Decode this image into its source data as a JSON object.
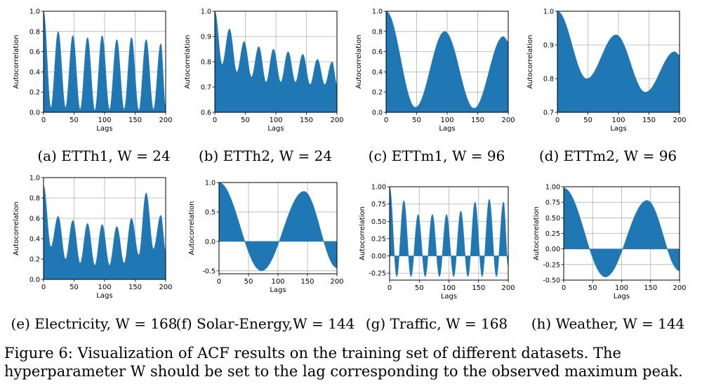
{
  "figure": {
    "caption": "Figure 6: Visualization of ACF results on the training set of different datasets. The hyperparameter W should be set to the lag corresponding to the observed maximum peak."
  },
  "chart_data": [
    {
      "type": "area",
      "dataset": "ETTh1",
      "subcaption": "(a) ETTh1, W = 24",
      "xlabel": "Lags",
      "ylabel": "Autocorrelation",
      "xlim": [
        0,
        200
      ],
      "ylim": [
        0.0,
        1.0
      ],
      "xticks": [
        0,
        50,
        100,
        150,
        200
      ],
      "yticks": [
        "0.0",
        "0.2",
        "0.4",
        "0.6",
        "0.8",
        "1.0"
      ],
      "grid": true,
      "period": 24,
      "peaks": [
        [
          0,
          1.0
        ],
        [
          24,
          0.8
        ],
        [
          48,
          0.76
        ],
        [
          72,
          0.74
        ],
        [
          96,
          0.76
        ],
        [
          120,
          0.72
        ],
        [
          144,
          0.74
        ],
        [
          168,
          0.72
        ],
        [
          192,
          0.68
        ]
      ],
      "troughs": [
        [
          12,
          0.05
        ],
        [
          36,
          0.05
        ],
        [
          60,
          0.03
        ],
        [
          84,
          0.02
        ],
        [
          108,
          0.03
        ],
        [
          132,
          0.03
        ],
        [
          156,
          0.02
        ],
        [
          180,
          0.03
        ],
        [
          200,
          0.05
        ]
      ]
    },
    {
      "type": "area",
      "dataset": "ETTh2",
      "subcaption": "(b) ETTh2, W = 24",
      "xlabel": "Lags",
      "ylabel": "Autocorrelation",
      "xlim": [
        0,
        200
      ],
      "ylim": [
        0.6,
        1.0
      ],
      "xticks": [
        0,
        50,
        100,
        150,
        200
      ],
      "yticks": [
        "0.6",
        "0.7",
        "0.8",
        "0.9",
        "1.0"
      ],
      "grid": true,
      "period": 24,
      "peaks": [
        [
          0,
          1.0
        ],
        [
          24,
          0.93
        ],
        [
          48,
          0.88
        ],
        [
          72,
          0.86
        ],
        [
          96,
          0.85
        ],
        [
          120,
          0.84
        ],
        [
          144,
          0.83
        ],
        [
          168,
          0.81
        ],
        [
          192,
          0.8
        ]
      ],
      "troughs": [
        [
          12,
          0.79
        ],
        [
          36,
          0.76
        ],
        [
          60,
          0.74
        ],
        [
          84,
          0.72
        ],
        [
          108,
          0.72
        ],
        [
          132,
          0.72
        ],
        [
          156,
          0.71
        ],
        [
          180,
          0.71
        ],
        [
          200,
          0.71
        ]
      ]
    },
    {
      "type": "area",
      "dataset": "ETTm1",
      "subcaption": "(c) ETTm1, W = 96",
      "xlabel": "Lags",
      "ylabel": "Autocorrelation",
      "xlim": [
        0,
        200
      ],
      "ylim": [
        0.0,
        1.0
      ],
      "xticks": [
        0,
        50,
        100,
        150,
        200
      ],
      "yticks": [
        "0.0",
        "0.2",
        "0.4",
        "0.6",
        "0.8",
        "1.0"
      ],
      "grid": true,
      "period": 96,
      "peaks": [
        [
          0,
          1.0
        ],
        [
          96,
          0.8
        ],
        [
          192,
          0.75
        ]
      ],
      "troughs": [
        [
          48,
          0.05
        ],
        [
          144,
          0.04
        ],
        [
          200,
          0.7
        ]
      ]
    },
    {
      "type": "area",
      "dataset": "ETTm2",
      "subcaption": "(d) ETTm2, W = 96",
      "xlabel": "Lags",
      "ylabel": "Autocorrelation",
      "xlim": [
        0,
        200
      ],
      "ylim": [
        0.7,
        1.0
      ],
      "xticks": [
        0,
        50,
        100,
        150,
        200
      ],
      "yticks": [
        "0.7",
        "0.8",
        "0.9",
        "1.0"
      ],
      "grid": true,
      "period": 96,
      "peaks": [
        [
          0,
          1.0
        ],
        [
          96,
          0.93
        ],
        [
          192,
          0.88
        ]
      ],
      "troughs": [
        [
          48,
          0.8
        ],
        [
          144,
          0.76
        ],
        [
          200,
          0.87
        ]
      ]
    },
    {
      "type": "area",
      "dataset": "Electricity",
      "subcaption": "(e) Electricity, W = 168",
      "xlabel": "Lags",
      "ylabel": "Autocorrelation",
      "xlim": [
        0,
        200
      ],
      "ylim": [
        0.0,
        1.0
      ],
      "xticks": [
        0,
        50,
        100,
        150,
        200
      ],
      "yticks": [
        "0.0",
        "0.2",
        "0.4",
        "0.6",
        "0.8",
        "1.0"
      ],
      "grid": true,
      "period": 24,
      "peaks": [
        [
          0,
          0.92
        ],
        [
          24,
          0.62
        ],
        [
          48,
          0.58
        ],
        [
          72,
          0.55
        ],
        [
          96,
          0.54
        ],
        [
          120,
          0.52
        ],
        [
          144,
          0.6
        ],
        [
          168,
          0.85
        ],
        [
          192,
          0.63
        ]
      ],
      "troughs": [
        [
          12,
          0.32
        ],
        [
          36,
          0.2
        ],
        [
          60,
          0.16
        ],
        [
          84,
          0.14
        ],
        [
          108,
          0.14
        ],
        [
          132,
          0.16
        ],
        [
          156,
          0.24
        ],
        [
          180,
          0.3
        ],
        [
          200,
          0.28
        ]
      ]
    },
    {
      "type": "area",
      "dataset": "Solar-Energy",
      "subcaption": "(f) Solar-Energy,W = 144",
      "xlabel": "Lags",
      "ylabel": "Autocorrelation",
      "xlim": [
        0,
        200
      ],
      "ylim": [
        -0.55,
        1.0
      ],
      "xticks": [
        0,
        50,
        100,
        150,
        200
      ],
      "yticks": [
        "-0.5",
        "0.0",
        "0.5",
        "1.0"
      ],
      "grid": true,
      "period": 144,
      "peaks": [
        [
          0,
          1.0
        ],
        [
          144,
          0.85
        ]
      ],
      "troughs": [
        [
          72,
          -0.5
        ],
        [
          200,
          -0.45
        ]
      ]
    },
    {
      "type": "area",
      "dataset": "Traffic",
      "subcaption": "(g) Traffic, W = 168",
      "xlabel": "Lags",
      "ylabel": "Autocorrelation",
      "xlim": [
        0,
        200
      ],
      "ylim": [
        -0.35,
        1.0
      ],
      "xticks": [
        0,
        50,
        100,
        150,
        200
      ],
      "yticks": [
        "-0.25",
        "0.00",
        "0.25",
        "0.50",
        "0.75",
        "1.00"
      ],
      "grid": true,
      "period": 24,
      "peaks": [
        [
          0,
          1.0
        ],
        [
          24,
          0.8
        ],
        [
          48,
          0.6
        ],
        [
          72,
          0.6
        ],
        [
          96,
          0.6
        ],
        [
          120,
          0.65
        ],
        [
          144,
          0.78
        ],
        [
          168,
          0.82
        ],
        [
          192,
          0.78
        ]
      ],
      "troughs": [
        [
          12,
          -0.3
        ],
        [
          36,
          -0.3
        ],
        [
          60,
          -0.3
        ],
        [
          84,
          -0.3
        ],
        [
          108,
          -0.3
        ],
        [
          132,
          -0.3
        ],
        [
          156,
          -0.3
        ],
        [
          180,
          -0.3
        ],
        [
          200,
          -0.15
        ]
      ]
    },
    {
      "type": "area",
      "dataset": "Weather",
      "subcaption": "(h) Weather, W = 144",
      "xlabel": "Lags",
      "ylabel": "Autocorrelation",
      "xlim": [
        0,
        200
      ],
      "ylim": [
        -0.5,
        1.0
      ],
      "xticks": [
        0,
        50,
        100,
        150,
        200
      ],
      "yticks": [
        "-0.50",
        "-0.25",
        "0.00",
        "0.25",
        "0.50",
        "0.75",
        "1.00"
      ],
      "grid": true,
      "period": 144,
      "peaks": [
        [
          0,
          0.98
        ],
        [
          144,
          0.78
        ]
      ],
      "troughs": [
        [
          72,
          -0.45
        ],
        [
          200,
          -0.35
        ]
      ]
    }
  ]
}
